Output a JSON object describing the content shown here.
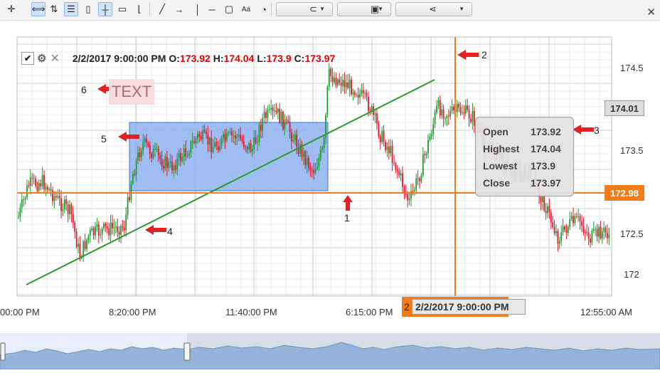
{
  "toolbar": {
    "buttons": [
      {
        "name": "crosshair-move-icon",
        "glyph": "✛"
      },
      {
        "name": "pan-icon",
        "glyph": "⟺"
      },
      {
        "name": "sort-arrows-icon",
        "glyph": "⇅"
      },
      {
        "name": "list-icon",
        "glyph": "☰"
      },
      {
        "name": "page-icon",
        "glyph": "▯"
      },
      {
        "name": "crosshair-icon",
        "glyph": "┼"
      },
      {
        "name": "comment-icon",
        "glyph": "▭"
      },
      {
        "name": "level-icon",
        "glyph": "⌊"
      },
      {
        "name": "trendline-icon",
        "glyph": "╱"
      },
      {
        "name": "ray-icon",
        "glyph": "→"
      },
      {
        "name": "vertical-line-icon",
        "glyph": "│"
      },
      {
        "name": "horizontal-line-icon",
        "glyph": "─"
      },
      {
        "name": "rectangle-icon",
        "glyph": "▢"
      },
      {
        "name": "text-tool-icon",
        "glyph": "Aa"
      },
      {
        "name": "gauge-icon",
        "glyph": "◔"
      }
    ],
    "dropdowns": [
      {
        "name": "magnet-dropdown",
        "icon": "magnet-icon",
        "glyph": "⊂"
      },
      {
        "name": "save-dropdown",
        "icon": "save-icon",
        "glyph": "▣"
      },
      {
        "name": "share-dropdown",
        "icon": "share-icon",
        "glyph": "⋖"
      }
    ],
    "close_glyph": "✕"
  },
  "ohlc": {
    "check": "✔",
    "gear": "⚙",
    "close": "✕",
    "datetime": "2/2/2017 9:00:00 PM",
    "o_label": "O:",
    "o_value": "173.92",
    "h_label": "H:",
    "h_value": "174.04",
    "l_label": "L:",
    "l_value": "173.9",
    "c_label": "C:",
    "c_value": "173.97"
  },
  "y_axis": {
    "ticks": [
      "174.5",
      "174",
      "173.5",
      "173",
      "172.5",
      "172"
    ],
    "price_label_gray": "174.01",
    "price_label_orange": "172.98"
  },
  "x_axis": {
    "ticks": [
      "00:00 PM",
      "8:20:00 PM",
      "11:40:00 PM",
      "6:15:00 PM",
      "12:55:00 AM"
    ]
  },
  "tooltip": {
    "rows": [
      {
        "k": "Open",
        "v": "173.92"
      },
      {
        "k": "Highest",
        "v": "174.04"
      },
      {
        "k": "Lowest",
        "v": "173.9"
      },
      {
        "k": "Close",
        "v": "173.97"
      }
    ]
  },
  "annotations": {
    "text_object": "TEXT",
    "callouts": [
      "1",
      "2",
      "3",
      "4",
      "5",
      "6"
    ],
    "crosshair_time": "2/2/2017 9:00:00 PM",
    "crosshair_time_prefix": "2"
  },
  "colors": {
    "bull": "#1d9a2e",
    "bear": "#e0142a",
    "crosshair": "#f07c1c",
    "trendline": "#2e9a2e",
    "rect_fill": "#8fb2ef",
    "rect_border": "#2f7ad8",
    "arrow": "#e22222"
  }
}
